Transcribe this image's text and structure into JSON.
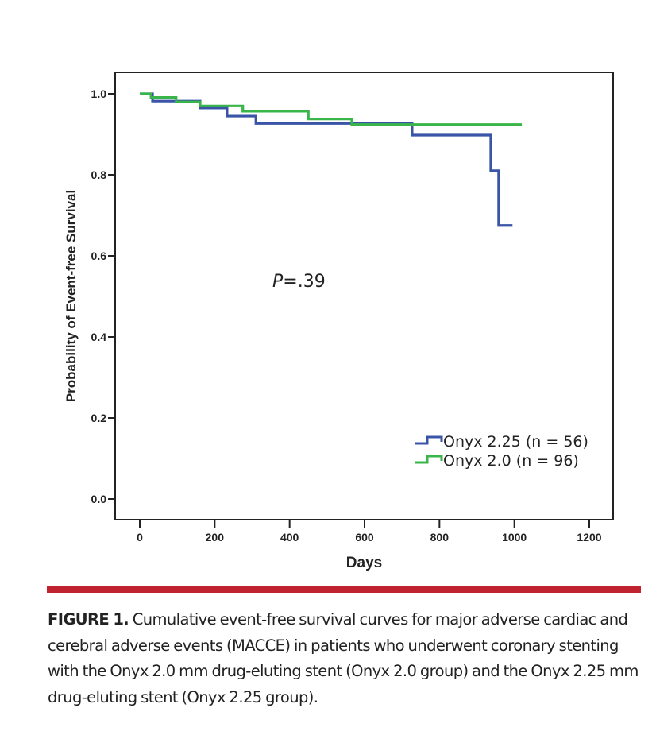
{
  "colors": {
    "series_blue": "#3a54a8",
    "series_green": "#3ab54a",
    "rule": "#c0222f",
    "axis": "#222222"
  },
  "chart_data": {
    "type": "line",
    "subtype": "kaplan-meier-step",
    "title": "",
    "xlabel": "Days",
    "ylabel": "Probability of Event-free Survival",
    "xlim": [
      -65,
      1265
    ],
    "ylim": [
      -0.05,
      1.055
    ],
    "x_ticks": [
      0,
      200,
      400,
      600,
      800,
      1000,
      1200
    ],
    "x_tick_labels": [
      "0",
      "200",
      "400",
      "600",
      "800",
      "1000",
      "1200"
    ],
    "y_ticks": [
      0.0,
      0.2,
      0.4,
      0.6,
      0.8,
      1.0
    ],
    "y_tick_labels": [
      "0.0",
      "0.2",
      "0.4",
      "0.6",
      "0.8",
      "1.0"
    ],
    "grid": false,
    "legend_position": "bottom-right",
    "annotation": {
      "italic": "P",
      "rest": "=.39"
    },
    "series": [
      {
        "name": "Onyx 2.25 (n = 56)",
        "color_key": "series_blue",
        "steps": [
          [
            0,
            1.0
          ],
          [
            34,
            0.982
          ],
          [
            161,
            0.965
          ],
          [
            233,
            0.945
          ],
          [
            310,
            0.927
          ],
          [
            727,
            0.898
          ],
          [
            937,
            0.81
          ],
          [
            958,
            0.675
          ],
          [
            995,
            0.675
          ]
        ]
      },
      {
        "name": "Onyx 2.0 (n = 96)",
        "color_key": "series_green",
        "steps": [
          [
            0,
            1.0
          ],
          [
            30,
            0.991
          ],
          [
            97,
            0.98
          ],
          [
            161,
            0.97
          ],
          [
            275,
            0.957
          ],
          [
            450,
            0.938
          ],
          [
            566,
            0.924
          ],
          [
            1020,
            0.924
          ]
        ]
      }
    ]
  },
  "caption": {
    "lead": "FIGURE 1.",
    "text": " Cumulative event-free survival curves for major adverse cardiac and cerebral adverse events (MACCE) in patients who underwent coronary stenting with the Onyx 2.0 mm drug-eluting stent (Onyx 2.0 group) and the Onyx 2.25 mm drug-eluting stent (Onyx 2.25 group)."
  }
}
